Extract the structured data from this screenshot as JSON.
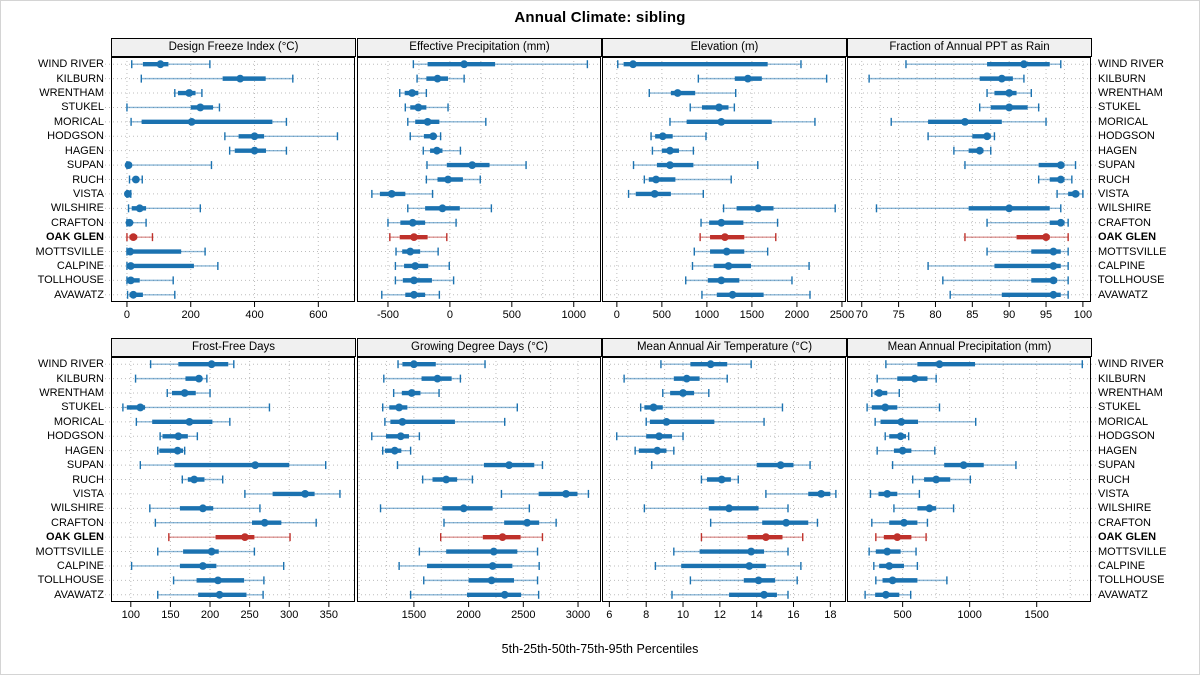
{
  "chart_data": {
    "type": "dotplot-percentiles",
    "title": "Annual Climate: sibling",
    "caption": "5th-25th-50th-75th-95th Percentiles",
    "percentiles": [
      5,
      25,
      50,
      75,
      95
    ],
    "legend_position": "none",
    "grid": "dotted",
    "stations": [
      "WIND RIVER",
      "KILBURN",
      "WRENTHAM",
      "STUKEL",
      "MORICAL",
      "HODGSON",
      "HAGEN",
      "SUPAN",
      "RUCH",
      "VISTA",
      "WILSHIRE",
      "CRAFTON",
      "OAK GLEN",
      "MOTTSVILLE",
      "CALPINE",
      "TOLLHOUSE",
      "AVAWATZ"
    ],
    "highlight_station": "OAK GLEN",
    "colors": {
      "series": "#1b72b0",
      "highlight": "#bf312b",
      "grid_line": "#bdbdbd",
      "panel_border": "#000000",
      "header_bg": "#f0f0f0"
    },
    "panels": [
      {
        "title": "Design Freeze Index (°C)",
        "xlim": [
          -50,
          715
        ],
        "grid_ticks": [
          0,
          200,
          400,
          600
        ],
        "label_ticks": [
          0,
          200,
          400,
          600
        ],
        "values": [
          [
            15,
            50,
            105,
            130,
            260
          ],
          [
            45,
            300,
            355,
            435,
            520
          ],
          [
            150,
            160,
            195,
            215,
            235
          ],
          [
            0,
            200,
            230,
            270,
            290
          ],
          [
            13,
            46,
            203,
            456,
            500
          ],
          [
            307,
            350,
            400,
            430,
            660
          ],
          [
            322,
            338,
            400,
            436,
            500
          ],
          [
            0,
            1,
            5,
            15,
            265
          ],
          [
            8,
            18,
            28,
            38,
            48
          ],
          [
            0,
            1,
            3,
            6,
            12
          ],
          [
            5,
            15,
            40,
            60,
            230
          ],
          [
            0,
            3,
            8,
            15,
            60
          ],
          [
            0,
            8,
            20,
            32,
            80
          ],
          [
            0,
            5,
            10,
            170,
            245
          ],
          [
            0,
            5,
            12,
            210,
            285
          ],
          [
            0,
            5,
            12,
            40,
            145
          ],
          [
            2,
            8,
            20,
            50,
            150
          ]
        ]
      },
      {
        "title": "Effective Precipitation (mm)",
        "xlim": [
          -750,
          1220
        ],
        "grid_ticks": [
          -500,
          -250,
          0,
          250,
          500,
          750,
          1000
        ],
        "label_ticks": [
          -500,
          0,
          500,
          1000
        ],
        "values": [
          [
            -295,
            -180,
            115,
            365,
            1110
          ],
          [
            -265,
            -190,
            -100,
            -15,
            115
          ],
          [
            -405,
            -365,
            -305,
            -255,
            -190
          ],
          [
            -360,
            -320,
            -255,
            -190,
            -15
          ],
          [
            -340,
            -280,
            -180,
            -85,
            290
          ],
          [
            -320,
            -210,
            -135,
            -110,
            -75
          ],
          [
            -215,
            -160,
            -105,
            -60,
            85
          ],
          [
            -185,
            -25,
            180,
            320,
            615
          ],
          [
            -190,
            -100,
            -15,
            105,
            245
          ],
          [
            -630,
            -565,
            -470,
            -360,
            -140
          ],
          [
            -340,
            -200,
            -60,
            80,
            335
          ],
          [
            -500,
            -400,
            -300,
            -200,
            50
          ],
          [
            -485,
            -405,
            -290,
            -180,
            -25
          ],
          [
            -435,
            -385,
            -320,
            -240,
            -95
          ],
          [
            -440,
            -370,
            -280,
            -175,
            -5
          ],
          [
            -440,
            -380,
            -290,
            -145,
            30
          ],
          [
            -550,
            -360,
            -290,
            -200,
            -85
          ]
        ]
      },
      {
        "title": "Elevation (m)",
        "xlim": [
          -165,
          2545
        ],
        "grid_ticks": [
          0,
          500,
          1000,
          1500,
          2000,
          2500
        ],
        "label_ticks": [
          0,
          500,
          1000,
          1500,
          2000,
          2500
        ],
        "values": [
          [
            10,
            75,
            180,
            1675,
            2045
          ],
          [
            905,
            1310,
            1455,
            1610,
            2330
          ],
          [
            360,
            600,
            675,
            870,
            1320
          ],
          [
            815,
            945,
            1135,
            1240,
            1305
          ],
          [
            590,
            775,
            1160,
            1720,
            2200
          ],
          [
            380,
            425,
            510,
            620,
            990
          ],
          [
            395,
            500,
            590,
            690,
            850
          ],
          [
            185,
            445,
            590,
            850,
            1565
          ],
          [
            305,
            355,
            435,
            650,
            1270
          ],
          [
            130,
            210,
            420,
            600,
            960
          ],
          [
            1185,
            1330,
            1570,
            1740,
            2425
          ],
          [
            935,
            1025,
            1160,
            1405,
            1785
          ],
          [
            925,
            1035,
            1200,
            1415,
            1765
          ],
          [
            860,
            1035,
            1220,
            1415,
            1675
          ],
          [
            840,
            1075,
            1240,
            1490,
            2135
          ],
          [
            765,
            1010,
            1160,
            1360,
            1945
          ],
          [
            945,
            1110,
            1285,
            1630,
            2145
          ]
        ]
      },
      {
        "title": "Fraction of Annual PPT as Rain",
        "xlim": [
          68,
          101.1
        ],
        "grid_ticks": [
          70,
          72.5,
          75,
          77.5,
          80,
          82.5,
          85,
          87.5,
          90,
          92.5,
          95,
          97.5,
          100
        ],
        "label_ticks": [
          70,
          75,
          80,
          85,
          90,
          95,
          100
        ],
        "values": [
          [
            76,
            87,
            92,
            95.5,
            97
          ],
          [
            71,
            86,
            89,
            90.5,
            92
          ],
          [
            87,
            88,
            90,
            91,
            93
          ],
          [
            86,
            87.5,
            90,
            92.5,
            94
          ],
          [
            74,
            79,
            84,
            89,
            95
          ],
          [
            79,
            85,
            87,
            87.5,
            88
          ],
          [
            82.5,
            84.5,
            86,
            86.5,
            87.5
          ],
          [
            84,
            94,
            97,
            97.5,
            99
          ],
          [
            94,
            95.5,
            97,
            97.5,
            98.5
          ],
          [
            96.5,
            98,
            99,
            99.5,
            100
          ],
          [
            72,
            84.5,
            90,
            95.5,
            97
          ],
          [
            87,
            95.5,
            97,
            97.5,
            98
          ],
          [
            84,
            91,
            95,
            95.5,
            98
          ],
          [
            87,
            93,
            96,
            97,
            98
          ],
          [
            79,
            88,
            96,
            97,
            98
          ],
          [
            81,
            93,
            96,
            96.5,
            98
          ],
          [
            82,
            89,
            96,
            97,
            98
          ]
        ]
      },
      {
        "title": "Frost-Free Days",
        "xlim": [
          75,
          383
        ],
        "grid_ticks": [
          100,
          150,
          200,
          250,
          300,
          350
        ],
        "label_ticks": [
          100,
          150,
          200,
          250,
          300,
          350
        ],
        "values": [
          [
            125,
            160,
            202,
            223,
            230
          ],
          [
            106,
            169,
            186,
            190,
            196
          ],
          [
            146,
            152,
            168,
            182,
            200
          ],
          [
            90,
            95,
            112,
            118,
            275
          ],
          [
            107,
            127,
            174,
            203,
            225
          ],
          [
            137,
            140,
            160,
            172,
            184
          ],
          [
            134,
            136,
            159,
            166,
            168
          ],
          [
            112,
            155,
            257,
            300,
            346
          ],
          [
            165,
            172,
            180,
            193,
            216
          ],
          [
            244,
            279,
            320,
            332,
            364
          ],
          [
            124,
            162,
            191,
            204,
            263
          ],
          [
            131,
            253,
            269,
            290,
            334
          ],
          [
            148,
            207,
            244,
            256,
            301
          ],
          [
            134,
            166,
            202,
            211,
            256
          ],
          [
            101,
            162,
            191,
            208,
            293
          ],
          [
            154,
            183,
            210,
            243,
            268
          ],
          [
            134,
            185,
            212,
            246,
            267
          ]
        ]
      },
      {
        "title": "Growing Degree Days (°C)",
        "xlim": [
          980,
          3210
        ],
        "grid_ticks": [
          1000,
          1250,
          1500,
          1750,
          2000,
          2250,
          2500,
          2750,
          3000
        ],
        "label_ticks": [
          1500,
          2000,
          2500,
          3000
        ],
        "values": [
          [
            1355,
            1395,
            1500,
            1700,
            2150
          ],
          [
            1225,
            1570,
            1715,
            1845,
            1925
          ],
          [
            1315,
            1390,
            1480,
            1560,
            1730
          ],
          [
            1215,
            1275,
            1365,
            1440,
            2445
          ],
          [
            1235,
            1285,
            1395,
            1875,
            2330
          ],
          [
            1115,
            1245,
            1380,
            1455,
            1550
          ],
          [
            1215,
            1235,
            1325,
            1385,
            1470
          ],
          [
            1350,
            2140,
            2370,
            2600,
            2675
          ],
          [
            1580,
            1670,
            1795,
            1895,
            2035
          ],
          [
            2300,
            2640,
            2890,
            2995,
            3095
          ],
          [
            1195,
            1760,
            1955,
            2220,
            2555
          ],
          [
            1775,
            2325,
            2535,
            2645,
            2800
          ],
          [
            1745,
            2130,
            2310,
            2475,
            2675
          ],
          [
            1550,
            1795,
            2230,
            2445,
            2630
          ],
          [
            1365,
            1620,
            2220,
            2400,
            2645
          ],
          [
            1590,
            2000,
            2210,
            2415,
            2630
          ],
          [
            1470,
            1985,
            2330,
            2480,
            2640
          ]
        ]
      },
      {
        "title": "Mean Annual Air Temperature (°C)",
        "xlim": [
          5.6,
          18.85
        ],
        "grid_ticks": [
          6,
          7,
          8,
          9,
          10,
          11,
          12,
          13,
          14,
          15,
          16,
          17,
          18
        ],
        "label_ticks": [
          6,
          8,
          10,
          12,
          14,
          16,
          18
        ],
        "values": [
          [
            8.8,
            10.4,
            11.5,
            12.4,
            13.7
          ],
          [
            6.8,
            9.5,
            10.2,
            10.9,
            12.4
          ],
          [
            8.9,
            9.3,
            10.0,
            10.6,
            11.4
          ],
          [
            7.7,
            7.9,
            8.4,
            8.9,
            15.4
          ],
          [
            8.0,
            8.2,
            9.1,
            11.7,
            14.4
          ],
          [
            6.4,
            8.0,
            8.7,
            9.4,
            10.0
          ],
          [
            7.4,
            7.6,
            8.6,
            9.1,
            9.5
          ],
          [
            8.3,
            14.0,
            15.3,
            16.0,
            16.9
          ],
          [
            11.0,
            11.3,
            12.1,
            12.6,
            13.0
          ],
          [
            14.5,
            16.8,
            17.5,
            18.0,
            18.3
          ],
          [
            7.9,
            11.4,
            12.5,
            14.1,
            15.7
          ],
          [
            11.5,
            14.3,
            15.6,
            16.8,
            17.3
          ],
          [
            11.0,
            13.5,
            14.5,
            15.4,
            16.5
          ],
          [
            9.5,
            10.9,
            13.7,
            14.4,
            15.7
          ],
          [
            8.5,
            9.9,
            13.6,
            14.5,
            16.4
          ],
          [
            10.4,
            13.3,
            14.1,
            15.0,
            16.2
          ],
          [
            9.4,
            12.5,
            14.4,
            15.1,
            15.7
          ]
        ]
      },
      {
        "title": "Mean Annual Precipitation (mm)",
        "xlim": [
          85,
          1905
        ],
        "grid_ticks": [
          250,
          500,
          750,
          1000,
          1250,
          1500,
          1750
        ],
        "label_ticks": [
          500,
          1000,
          1500
        ],
        "values": [
          [
            375,
            610,
            775,
            1040,
            1840
          ],
          [
            310,
            460,
            590,
            685,
            750
          ],
          [
            270,
            290,
            325,
            385,
            475
          ],
          [
            235,
            270,
            370,
            460,
            775
          ],
          [
            295,
            335,
            490,
            615,
            1045
          ],
          [
            370,
            400,
            485,
            525,
            545
          ],
          [
            310,
            435,
            500,
            565,
            740
          ],
          [
            425,
            810,
            955,
            1105,
            1345
          ],
          [
            575,
            660,
            750,
            855,
            1005
          ],
          [
            260,
            320,
            385,
            460,
            625
          ],
          [
            435,
            610,
            700,
            750,
            880
          ],
          [
            270,
            400,
            510,
            610,
            685
          ],
          [
            300,
            360,
            460,
            565,
            675
          ],
          [
            250,
            300,
            385,
            485,
            600
          ],
          [
            285,
            325,
            400,
            510,
            610
          ],
          [
            300,
            350,
            425,
            610,
            830
          ],
          [
            220,
            295,
            375,
            475,
            560
          ]
        ]
      }
    ]
  }
}
